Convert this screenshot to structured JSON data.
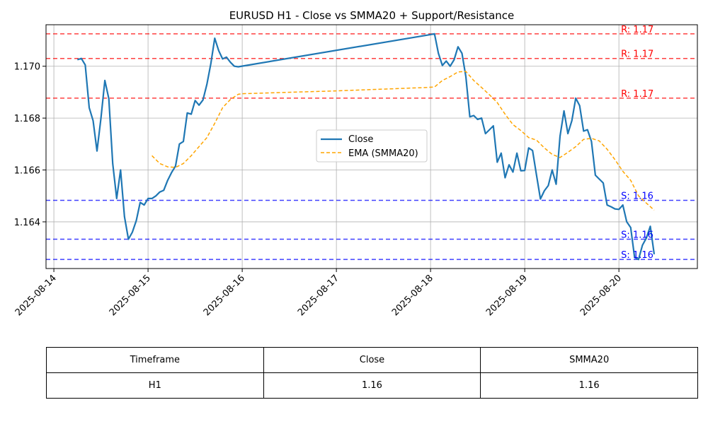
{
  "chart_data": {
    "type": "line",
    "title": "EURUSD H1 - Close vs SMMA20 + Support/Resistance",
    "xlabel": "",
    "ylabel": "",
    "x_range": [
      "2025-08-13T22:00",
      "2025-08-20T20:00"
    ],
    "ylim": [
      1.1622,
      1.1716
    ],
    "x_ticks": [
      "2025-08-14",
      "2025-08-15",
      "2025-08-16",
      "2025-08-17",
      "2025-08-18",
      "2025-08-19",
      "2025-08-20"
    ],
    "y_ticks": [
      1.164,
      1.166,
      1.168,
      1.17
    ],
    "y_tick_labels": [
      "1.164",
      "1.166",
      "1.168",
      "1.170"
    ],
    "grid": true,
    "legend_position": "center",
    "series": [
      {
        "name": "Close",
        "color": "#1f77b4",
        "style": "solid",
        "points": [
          [
            "2025-08-14T06:00",
            1.17025
          ],
          [
            "2025-08-14T07:00",
            1.1703
          ],
          [
            "2025-08-14T08:00",
            1.17005
          ],
          [
            "2025-08-14T09:00",
            1.1684
          ],
          [
            "2025-08-14T10:00",
            1.1679
          ],
          [
            "2025-08-14T11:00",
            1.16673
          ],
          [
            "2025-08-14T12:00",
            1.168
          ],
          [
            "2025-08-14T13:00",
            1.16945
          ],
          [
            "2025-08-14T14:00",
            1.16875
          ],
          [
            "2025-08-14T15:00",
            1.16625
          ],
          [
            "2025-08-14T16:00",
            1.1649
          ],
          [
            "2025-08-14T17:00",
            1.166
          ],
          [
            "2025-08-14T18:00",
            1.1642
          ],
          [
            "2025-08-14T19:00",
            1.16333
          ],
          [
            "2025-08-14T20:00",
            1.1636
          ],
          [
            "2025-08-14T21:00",
            1.16405
          ],
          [
            "2025-08-14T22:00",
            1.16475
          ],
          [
            "2025-08-14T23:00",
            1.16465
          ],
          [
            "2025-08-15T00:00",
            1.1649
          ],
          [
            "2025-08-15T01:00",
            1.1649
          ],
          [
            "2025-08-15T02:00",
            1.165
          ],
          [
            "2025-08-15T03:00",
            1.16515
          ],
          [
            "2025-08-15T04:00",
            1.16522
          ],
          [
            "2025-08-15T05:00",
            1.1656
          ],
          [
            "2025-08-15T06:00",
            1.1659
          ],
          [
            "2025-08-15T07:00",
            1.16615
          ],
          [
            "2025-08-15T08:00",
            1.167
          ],
          [
            "2025-08-15T09:00",
            1.1671
          ],
          [
            "2025-08-15T10:00",
            1.1682
          ],
          [
            "2025-08-15T11:00",
            1.16815
          ],
          [
            "2025-08-15T12:00",
            1.16868
          ],
          [
            "2025-08-15T13:00",
            1.1685
          ],
          [
            "2025-08-15T14:00",
            1.1687
          ],
          [
            "2025-08-15T15:00",
            1.1693
          ],
          [
            "2025-08-15T16:00",
            1.1701
          ],
          [
            "2025-08-15T17:00",
            1.17108
          ],
          [
            "2025-08-15T18:00",
            1.1706
          ],
          [
            "2025-08-15T19:00",
            1.17028
          ],
          [
            "2025-08-15T20:00",
            1.17035
          ],
          [
            "2025-08-15T21:00",
            1.17015
          ],
          [
            "2025-08-15T22:00",
            1.17
          ],
          [
            "2025-08-15T23:00",
            1.16998
          ],
          [
            "2025-08-18T00:00",
            1.17122
          ],
          [
            "2025-08-18T01:00",
            1.17125
          ],
          [
            "2025-08-18T02:00",
            1.1705
          ],
          [
            "2025-08-18T03:00",
            1.17003
          ],
          [
            "2025-08-18T04:00",
            1.1702
          ],
          [
            "2025-08-18T05:00",
            1.17
          ],
          [
            "2025-08-18T06:00",
            1.17025
          ],
          [
            "2025-08-18T07:00",
            1.17075
          ],
          [
            "2025-08-18T08:00",
            1.1705
          ],
          [
            "2025-08-18T09:00",
            1.1696
          ],
          [
            "2025-08-18T10:00",
            1.16805
          ],
          [
            "2025-08-18T11:00",
            1.1681
          ],
          [
            "2025-08-18T12:00",
            1.16795
          ],
          [
            "2025-08-18T13:00",
            1.168
          ],
          [
            "2025-08-18T14:00",
            1.1674
          ],
          [
            "2025-08-18T15:00",
            1.16755
          ],
          [
            "2025-08-18T16:00",
            1.1677
          ],
          [
            "2025-08-18T17:00",
            1.1663
          ],
          [
            "2025-08-18T18:00",
            1.16665
          ],
          [
            "2025-08-18T19:00",
            1.1657
          ],
          [
            "2025-08-18T20:00",
            1.1662
          ],
          [
            "2025-08-18T21:00",
            1.16592
          ],
          [
            "2025-08-18T22:00",
            1.16665
          ],
          [
            "2025-08-18T23:00",
            1.16597
          ],
          [
            "2025-08-19T00:00",
            1.16598
          ],
          [
            "2025-08-19T01:00",
            1.16685
          ],
          [
            "2025-08-19T02:00",
            1.16675
          ],
          [
            "2025-08-19T03:00",
            1.1658
          ],
          [
            "2025-08-19T04:00",
            1.16488
          ],
          [
            "2025-08-19T05:00",
            1.1652
          ],
          [
            "2025-08-19T06:00",
            1.1654
          ],
          [
            "2025-08-19T07:00",
            1.166
          ],
          [
            "2025-08-19T08:00",
            1.16545
          ],
          [
            "2025-08-19T09:00",
            1.1673
          ],
          [
            "2025-08-19T10:00",
            1.16828
          ],
          [
            "2025-08-19T11:00",
            1.1674
          ],
          [
            "2025-08-19T12:00",
            1.1679
          ],
          [
            "2025-08-19T13:00",
            1.16877
          ],
          [
            "2025-08-19T14:00",
            1.16848
          ],
          [
            "2025-08-19T15:00",
            1.1675
          ],
          [
            "2025-08-19T16:00",
            1.16755
          ],
          [
            "2025-08-19T17:00",
            1.1671
          ],
          [
            "2025-08-19T18:00",
            1.1658
          ],
          [
            "2025-08-19T19:00",
            1.16565
          ],
          [
            "2025-08-19T20:00",
            1.1655
          ],
          [
            "2025-08-19T21:00",
            1.16465
          ],
          [
            "2025-08-19T22:00",
            1.16458
          ],
          [
            "2025-08-19T23:00",
            1.1645
          ],
          [
            "2025-08-20T00:00",
            1.16448
          ],
          [
            "2025-08-20T01:00",
            1.16465
          ],
          [
            "2025-08-20T02:00",
            1.164
          ],
          [
            "2025-08-20T03:00",
            1.16378
          ],
          [
            "2025-08-20T04:00",
            1.16263
          ],
          [
            "2025-08-20T05:00",
            1.16255
          ],
          [
            "2025-08-20T06:00",
            1.1631
          ],
          [
            "2025-08-20T07:00",
            1.16338
          ],
          [
            "2025-08-20T08:00",
            1.16383
          ],
          [
            "2025-08-20T09:00",
            1.16275
          ]
        ]
      },
      {
        "name": "EMA (SMMA20)",
        "color": "#ffa500",
        "style": "dashed",
        "points": [
          [
            "2025-08-15T01:00",
            1.16655
          ],
          [
            "2025-08-15T03:00",
            1.16625
          ],
          [
            "2025-08-15T05:00",
            1.16612
          ],
          [
            "2025-08-15T07:00",
            1.1661
          ],
          [
            "2025-08-15T09:00",
            1.16625
          ],
          [
            "2025-08-15T11:00",
            1.16655
          ],
          [
            "2025-08-15T13:00",
            1.1669
          ],
          [
            "2025-08-15T15:00",
            1.16725
          ],
          [
            "2025-08-15T17:00",
            1.1678
          ],
          [
            "2025-08-15T19:00",
            1.1684
          ],
          [
            "2025-08-15T21:00",
            1.16872
          ],
          [
            "2025-08-15T23:00",
            1.16892
          ],
          [
            "2025-08-16T00:00",
            1.16894
          ],
          [
            "2025-08-17T00:00",
            1.16905
          ],
          [
            "2025-08-17T23:00",
            1.16918
          ],
          [
            "2025-08-18T01:00",
            1.1692
          ],
          [
            "2025-08-18T03:00",
            1.16945
          ],
          [
            "2025-08-18T05:00",
            1.1696
          ],
          [
            "2025-08-18T07:00",
            1.16978
          ],
          [
            "2025-08-18T09:00",
            1.1698
          ],
          [
            "2025-08-18T11:00",
            1.16945
          ],
          [
            "2025-08-18T13:00",
            1.16918
          ],
          [
            "2025-08-18T15:00",
            1.1689
          ],
          [
            "2025-08-18T17:00",
            1.1686
          ],
          [
            "2025-08-18T19:00",
            1.16815
          ],
          [
            "2025-08-18T21:00",
            1.16775
          ],
          [
            "2025-08-18T23:00",
            1.16752
          ],
          [
            "2025-08-19T01:00",
            1.16725
          ],
          [
            "2025-08-19T03:00",
            1.16715
          ],
          [
            "2025-08-19T05:00",
            1.16685
          ],
          [
            "2025-08-19T07:00",
            1.1666
          ],
          [
            "2025-08-19T09:00",
            1.16648
          ],
          [
            "2025-08-19T11:00",
            1.16668
          ],
          [
            "2025-08-19T13:00",
            1.1669
          ],
          [
            "2025-08-19T15:00",
            1.16718
          ],
          [
            "2025-08-19T17:00",
            1.16722
          ],
          [
            "2025-08-19T19:00",
            1.16712
          ],
          [
            "2025-08-19T21:00",
            1.1668
          ],
          [
            "2025-08-19T23:00",
            1.1664
          ],
          [
            "2025-08-20T01:00",
            1.16595
          ],
          [
            "2025-08-20T03:00",
            1.1656
          ],
          [
            "2025-08-20T05:00",
            1.165
          ],
          [
            "2025-08-20T07:00",
            1.16472
          ],
          [
            "2025-08-20T09:00",
            1.16445
          ]
        ]
      }
    ],
    "levels": [
      {
        "kind": "resistance",
        "value": 1.17125,
        "label": "R: 1.17",
        "color": "#ff0000"
      },
      {
        "kind": "resistance",
        "value": 1.1703,
        "label": "R: 1.17",
        "color": "#ff0000"
      },
      {
        "kind": "resistance",
        "value": 1.16877,
        "label": "R: 1.17",
        "color": "#ff0000"
      },
      {
        "kind": "support",
        "value": 1.16483,
        "label": "S: 1.16",
        "color": "#0000ff"
      },
      {
        "kind": "support",
        "value": 1.16333,
        "label": "S: 1.16",
        "color": "#0000ff"
      },
      {
        "kind": "support",
        "value": 1.16255,
        "label": "S: 1.16",
        "color": "#0000ff"
      }
    ]
  },
  "table": {
    "headers": [
      "Timeframe",
      "Close",
      "SMMA20"
    ],
    "row": [
      "H1",
      "1.16",
      "1.16"
    ]
  }
}
